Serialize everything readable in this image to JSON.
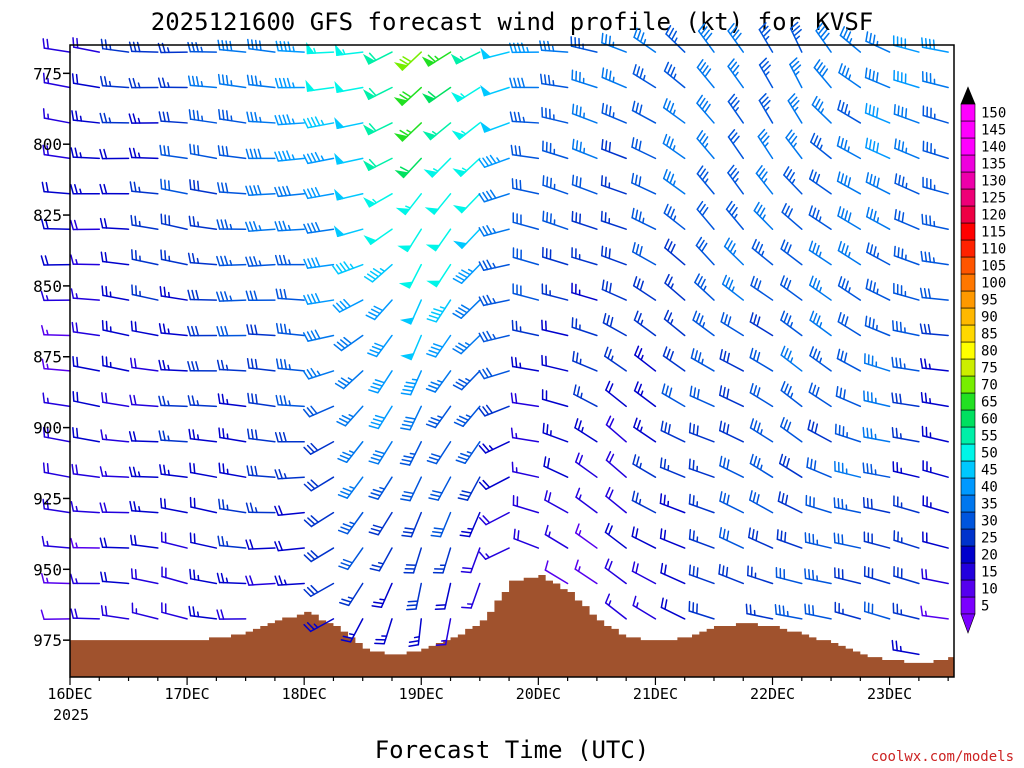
{
  "chart_data": {
    "type": "wind-barb-time-height",
    "title": "2025121600 GFS forecast wind profile (kt) for KVSF",
    "xlabel": "Forecast Time (UTC)",
    "ylabel": "",
    "credit": "coolwx.com/models",
    "x_tick_labels": [
      "16DEC",
      "17DEC",
      "18DEC",
      "19DEC",
      "20DEC",
      "21DEC",
      "22DEC",
      "23DEC"
    ],
    "x_year_label": "2025",
    "x_range_days": [
      0,
      7.55
    ],
    "y_tick_labels": [
      "775",
      "800",
      "825",
      "850",
      "875",
      "900",
      "925",
      "950",
      "975"
    ],
    "y_range_mb": [
      765,
      988
    ],
    "level_step_mb": 12.5,
    "time_step_hours": 6,
    "colorbar_labels": [
      "5",
      "10",
      "15",
      "20",
      "25",
      "30",
      "35",
      "40",
      "45",
      "50",
      "55",
      "60",
      "65",
      "70",
      "75",
      "80",
      "85",
      "90",
      "95",
      "100",
      "105",
      "110",
      "115",
      "120",
      "125",
      "130",
      "135",
      "140",
      "145",
      "150"
    ],
    "colorbar_colors": [
      "#7b00ff",
      "#5500ee",
      "#2200dd",
      "#0000cc",
      "#0033cc",
      "#0055dd",
      "#0077ee",
      "#0099ff",
      "#00c8ff",
      "#00f5e8",
      "#00f0a8",
      "#00e060",
      "#22e022",
      "#77ee00",
      "#ccee00",
      "#ffff00",
      "#ffd800",
      "#ffb800",
      "#ff9900",
      "#ff7700",
      "#ff5500",
      "#ff2200",
      "#ff0000",
      "#ee0044",
      "#ee0077",
      "#ee00aa",
      "#ee00dd",
      "#ff00ff",
      "#ff00ff",
      "#ff00ff"
    ],
    "terrain": {
      "color": "#a0522d",
      "time_hours": [
        0,
        12,
        24,
        30,
        36,
        42,
        48,
        54,
        60,
        66,
        72,
        78,
        84,
        90,
        96,
        102,
        108,
        114,
        120,
        126,
        132,
        138,
        144,
        150,
        156,
        162,
        168,
        174,
        181
      ],
      "surface_mb": [
        975,
        975,
        975,
        974,
        972,
        968,
        965,
        970,
        978,
        980,
        978,
        974,
        968,
        954,
        952,
        958,
        968,
        974,
        975,
        974,
        970,
        969,
        970,
        973,
        976,
        980,
        982,
        983,
        981
      ]
    },
    "wind_profile": {
      "note": "speed in kt and direction in degrees (from) interpolated from these key times (hours) per level band",
      "key_times_hours": [
        0,
        24,
        48,
        60,
        72,
        84,
        96,
        114,
        132,
        150,
        168,
        181
      ],
      "upper_speed_kt": [
        20,
        30,
        45,
        55,
        70,
        60,
        40,
        35,
        38,
        35,
        40,
        40
      ],
      "upper_dir_deg": [
        275,
        275,
        270,
        270,
        225,
        240,
        275,
        285,
        330,
        330,
        300,
        280
      ],
      "lower_speed_kt": [
        15,
        20,
        20,
        25,
        20,
        15,
        10,
        15,
        25,
        30,
        30,
        15
      ],
      "lower_dir_deg": [
        275,
        280,
        270,
        200,
        190,
        200,
        290,
        315,
        280,
        285,
        280,
        280
      ]
    }
  }
}
